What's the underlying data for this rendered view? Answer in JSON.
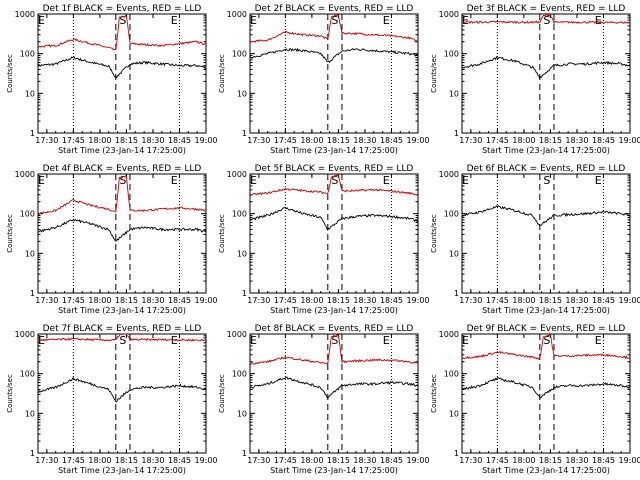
{
  "figure": {
    "colors": {
      "events": "#000000",
      "lld": "#cc0000",
      "axes": "#000000"
    },
    "panels": [
      {
        "title": "Det 1f BLACK = Events, RED = LLD",
        "xlabel": "Start Time (23-Jan-14 17:25:00)",
        "ylabel": "Counts/sec"
      },
      {
        "title": "Det 2f BLACK = Events, RED = LLD",
        "xlabel": "Start Time (23-Jan-14 17:25:00)",
        "ylabel": "Counts/sec"
      },
      {
        "title": "Det 3f BLACK = Events, RED = LLD",
        "xlabel": "Start Time (23-Jan-14 17:25:00)",
        "ylabel": "Counts/sec"
      },
      {
        "title": "Det 4f BLACK = Events, RED = LLD",
        "xlabel": "Start Time (23-Jan-14 17:25:00)",
        "ylabel": "Counts/sec"
      },
      {
        "title": "Det 5f BLACK = Events, RED = LLD",
        "xlabel": "Start Time (23-Jan-14 17:25:00)",
        "ylabel": "Counts/sec"
      },
      {
        "title": "Det 6f BLACK = Events, RED = LLD",
        "xlabel": "Start Time (23-Jan-14 17:25:00)",
        "ylabel": "Counts/sec"
      },
      {
        "title": "Det 7f BLACK = Events, RED = LLD",
        "xlabel": "Start Time (23-Jan-14 17:25:00)",
        "ylabel": "Counts/sec"
      },
      {
        "title": "Det 8f BLACK = Events, RED = LLD",
        "xlabel": "Start Time (23-Jan-14 17:25:00)",
        "ylabel": "Counts/sec"
      },
      {
        "title": "Det 9f BLACK = Events, RED = LLD",
        "xlabel": "Start Time (23-Jan-14 17:25:00)",
        "ylabel": "Counts/sec"
      }
    ]
  },
  "chart_data": {
    "type": "line",
    "layout": "3x3 grid",
    "xaxis": {
      "range": [
        "17:25",
        "19:00"
      ],
      "tick_labels": [
        "17:30",
        "17:45",
        "18:00",
        "18:15",
        "18:30",
        "18:45",
        "19:00"
      ],
      "dotted_gridlines_at": [
        "17:45",
        "18:45"
      ]
    },
    "yaxis": {
      "scale": "log",
      "ylim": [
        1,
        1000
      ],
      "tick_labels": [
        "1",
        "10",
        "100",
        "1000"
      ]
    },
    "markers": {
      "labels": [
        "E",
        "S",
        "E"
      ],
      "label_positions_time": [
        "17:27",
        "18:13",
        "18:42"
      ],
      "dashed_lines_at": [
        "18:09",
        "18:17"
      ],
      "note": "E marks appear at the left edge and near 18:45; S marks appear between the dashed lines"
    },
    "panels": [
      {
        "detector": "1f",
        "series": [
          {
            "name": "Events",
            "color": "#000000",
            "x": [
              "17:25",
              "17:35",
              "17:45",
              "17:55",
              "18:05",
              "18:09",
              "18:17",
              "18:25",
              "18:35",
              "18:45",
              "18:55",
              "19:00"
            ],
            "values": [
              50,
              55,
              80,
              60,
              48,
              25,
              55,
              60,
              55,
              50,
              50,
              45
            ]
          },
          {
            "name": "LLD",
            "color": "#cc0000",
            "x": [
              "17:25",
              "17:35",
              "17:45",
              "17:55",
              "18:05",
              "18:09",
              "18:11",
              "18:15",
              "18:17",
              "18:25",
              "18:35",
              "18:45",
              "18:55",
              "19:00"
            ],
            "values": [
              150,
              160,
              230,
              180,
              140,
              120,
              800,
              900,
              180,
              170,
              160,
              180,
              200,
              170
            ]
          }
        ]
      },
      {
        "detector": "2f",
        "series": [
          {
            "name": "Events",
            "color": "#000000",
            "x": [
              "17:25",
              "17:35",
              "17:45",
              "17:55",
              "18:05",
              "18:09",
              "18:17",
              "18:25",
              "18:35",
              "18:45",
              "18:55",
              "19:00"
            ],
            "values": [
              80,
              100,
              130,
              120,
              100,
              60,
              115,
              130,
              120,
              110,
              100,
              90
            ]
          },
          {
            "name": "LLD",
            "color": "#cc0000",
            "x": [
              "17:25",
              "17:35",
              "17:45",
              "17:55",
              "18:05",
              "18:09",
              "18:11",
              "18:15",
              "18:17",
              "18:25",
              "18:35",
              "18:45",
              "18:55",
              "19:00"
            ],
            "values": [
              200,
              220,
              350,
              300,
              280,
              230,
              850,
              950,
              330,
              320,
              300,
              280,
              250,
              200
            ]
          }
        ]
      },
      {
        "detector": "3f",
        "series": [
          {
            "name": "Events",
            "color": "#000000",
            "x": [
              "17:25",
              "17:35",
              "17:45",
              "17:55",
              "18:05",
              "18:09",
              "18:17",
              "18:25",
              "18:35",
              "18:45",
              "18:55",
              "19:00"
            ],
            "values": [
              45,
              55,
              80,
              65,
              45,
              25,
              50,
              55,
              55,
              60,
              55,
              50
            ]
          },
          {
            "name": "LLD",
            "color": "#cc0000",
            "x": [
              "17:25",
              "17:35",
              "17:45",
              "17:55",
              "18:05",
              "18:09",
              "18:11",
              "18:15",
              "18:17",
              "18:25",
              "18:35",
              "18:45",
              "18:55",
              "19:00"
            ],
            "values": [
              620,
              620,
              630,
              620,
              620,
              620,
              900,
              950,
              620,
              620,
              620,
              610,
              610,
              600
            ]
          }
        ]
      },
      {
        "detector": "4f",
        "series": [
          {
            "name": "Events",
            "color": "#000000",
            "x": [
              "17:25",
              "17:35",
              "17:45",
              "17:55",
              "18:05",
              "18:09",
              "18:17",
              "18:25",
              "18:35",
              "18:45",
              "18:55",
              "19:00"
            ],
            "values": [
              35,
              45,
              70,
              55,
              40,
              20,
              40,
              45,
              40,
              40,
              40,
              35
            ]
          },
          {
            "name": "LLD",
            "color": "#cc0000",
            "x": [
              "17:25",
              "17:35",
              "17:45",
              "17:55",
              "18:05",
              "18:09",
              "18:11",
              "18:15",
              "18:17",
              "18:25",
              "18:35",
              "18:45",
              "18:55",
              "19:00"
            ],
            "values": [
              100,
              120,
              220,
              160,
              130,
              110,
              800,
              900,
              120,
              120,
              130,
              140,
              130,
              120
            ]
          }
        ]
      },
      {
        "detector": "5f",
        "series": [
          {
            "name": "Events",
            "color": "#000000",
            "x": [
              "17:25",
              "17:35",
              "17:45",
              "17:55",
              "18:05",
              "18:09",
              "18:17",
              "18:25",
              "18:35",
              "18:45",
              "18:55",
              "19:00"
            ],
            "values": [
              70,
              90,
              140,
              100,
              80,
              40,
              75,
              85,
              90,
              85,
              75,
              65
            ]
          },
          {
            "name": "LLD",
            "color": "#cc0000",
            "x": [
              "17:25",
              "17:35",
              "17:45",
              "17:55",
              "18:05",
              "18:09",
              "18:11",
              "18:15",
              "18:17",
              "18:25",
              "18:35",
              "18:45",
              "18:55",
              "19:00"
            ],
            "values": [
              300,
              330,
              420,
              380,
              350,
              320,
              850,
              950,
              370,
              380,
              400,
              370,
              330,
              300
            ]
          }
        ]
      },
      {
        "detector": "6f",
        "series": [
          {
            "name": "Events",
            "color": "#000000",
            "x": [
              "17:25",
              "17:35",
              "17:45",
              "17:55",
              "18:05",
              "18:09",
              "18:17",
              "18:25",
              "18:35",
              "18:45",
              "18:55",
              "19:00"
            ],
            "values": [
              90,
              110,
              150,
              120,
              90,
              50,
              90,
              95,
              100,
              110,
              100,
              90
            ]
          }
        ]
      },
      {
        "detector": "7f",
        "series": [
          {
            "name": "Events",
            "color": "#000000",
            "x": [
              "17:25",
              "17:35",
              "17:45",
              "17:55",
              "18:05",
              "18:09",
              "18:17",
              "18:25",
              "18:35",
              "18:45",
              "18:55",
              "19:00"
            ],
            "values": [
              35,
              45,
              75,
              55,
              40,
              20,
              40,
              45,
              45,
              50,
              45,
              40
            ]
          },
          {
            "name": "LLD",
            "color": "#cc0000",
            "x": [
              "17:25",
              "17:35",
              "17:45",
              "17:55",
              "18:05",
              "18:09",
              "18:11",
              "18:15",
              "18:17",
              "18:25",
              "18:35",
              "18:45",
              "18:55",
              "19:00"
            ],
            "values": [
              700,
              720,
              750,
              720,
              700,
              700,
              950,
              980,
              720,
              720,
              720,
              710,
              700,
              690
            ]
          }
        ]
      },
      {
        "detector": "8f",
        "series": [
          {
            "name": "Events",
            "color": "#000000",
            "x": [
              "17:25",
              "17:35",
              "17:45",
              "17:55",
              "18:05",
              "18:09",
              "18:17",
              "18:25",
              "18:35",
              "18:45",
              "18:55",
              "19:00"
            ],
            "values": [
              45,
              55,
              80,
              60,
              45,
              25,
              50,
              55,
              55,
              60,
              55,
              50
            ]
          },
          {
            "name": "LLD",
            "color": "#cc0000",
            "x": [
              "17:25",
              "17:35",
              "17:45",
              "17:55",
              "18:05",
              "18:09",
              "18:11",
              "18:15",
              "18:17",
              "18:25",
              "18:35",
              "18:45",
              "18:55",
              "19:00"
            ],
            "values": [
              180,
              200,
              260,
              220,
              190,
              180,
              850,
              950,
              200,
              210,
              220,
              220,
              200,
              180
            ]
          }
        ]
      },
      {
        "detector": "9f",
        "series": [
          {
            "name": "Events",
            "color": "#000000",
            "x": [
              "17:25",
              "17:35",
              "17:45",
              "17:55",
              "18:05",
              "18:09",
              "18:17",
              "18:25",
              "18:35",
              "18:45",
              "18:55",
              "19:00"
            ],
            "values": [
              40,
              50,
              75,
              60,
              45,
              25,
              45,
              50,
              50,
              55,
              50,
              45
            ]
          },
          {
            "name": "LLD",
            "color": "#cc0000",
            "x": [
              "17:25",
              "17:35",
              "17:45",
              "17:55",
              "18:05",
              "18:09",
              "18:11",
              "18:15",
              "18:17",
              "18:25",
              "18:35",
              "18:45",
              "18:55",
              "19:00"
            ],
            "values": [
              250,
              270,
              350,
              300,
              260,
              240,
              850,
              950,
              280,
              280,
              290,
              300,
              270,
              250
            ]
          }
        ]
      }
    ]
  }
}
